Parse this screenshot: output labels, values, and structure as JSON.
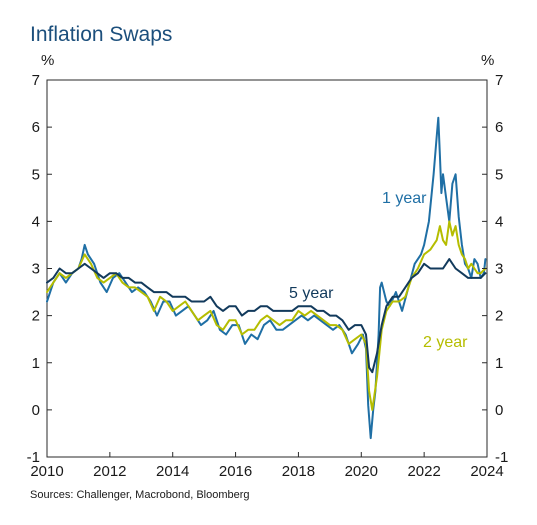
{
  "chart_data": {
    "type": "line",
    "title": "Inflation Swaps",
    "y_unit_left": "%",
    "y_unit_right": "%",
    "source": "Sources: Challenger, Macrobond, Bloomberg",
    "xlim": [
      2010,
      2024
    ],
    "ylim": [
      -1,
      7
    ],
    "x_ticks": [
      2010,
      2012,
      2014,
      2016,
      2018,
      2020,
      2022,
      2024
    ],
    "y_ticks": [
      -1,
      0,
      1,
      2,
      3,
      4,
      5,
      6,
      7
    ],
    "grid": false,
    "legend": "none",
    "colors": {
      "one_year": "#1f6fa5",
      "two_year": "#b5bd00",
      "five_year": "#123a5c"
    },
    "labels": {
      "one_year": "1 year",
      "two_year": "2 year",
      "five_year": "5 year"
    },
    "series": [
      {
        "name": "1 year",
        "key": "one_year",
        "x": [
          2010.0,
          2010.2,
          2010.4,
          2010.6,
          2010.8,
          2011.0,
          2011.1,
          2011.2,
          2011.3,
          2011.5,
          2011.7,
          2011.9,
          2012.1,
          2012.3,
          2012.5,
          2012.7,
          2012.9,
          2013.1,
          2013.3,
          2013.5,
          2013.7,
          2013.9,
          2014.1,
          2014.3,
          2014.5,
          2014.7,
          2014.9,
          2015.1,
          2015.3,
          2015.5,
          2015.7,
          2015.9,
          2016.1,
          2016.3,
          2016.5,
          2016.7,
          2016.9,
          2017.1,
          2017.3,
          2017.5,
          2017.7,
          2017.9,
          2018.1,
          2018.3,
          2018.5,
          2018.7,
          2018.9,
          2019.1,
          2019.3,
          2019.5,
          2019.7,
          2019.9,
          2020.05,
          2020.15,
          2020.22,
          2020.3,
          2020.38,
          2020.45,
          2020.55,
          2020.6,
          2020.65,
          2020.8,
          2020.9,
          2021.1,
          2021.3,
          2021.5,
          2021.7,
          2021.9,
          2022.0,
          2022.15,
          2022.3,
          2022.4,
          2022.45,
          2022.5,
          2022.55,
          2022.6,
          2022.7,
          2022.8,
          2022.9,
          2023.0,
          2023.1,
          2023.2,
          2023.3,
          2023.4,
          2023.5,
          2023.6,
          2023.7,
          2023.8,
          2023.9,
          2023.95
        ],
        "values": [
          2.3,
          2.7,
          2.9,
          2.7,
          2.9,
          3.0,
          3.2,
          3.5,
          3.3,
          3.1,
          2.7,
          2.5,
          2.8,
          2.9,
          2.7,
          2.5,
          2.6,
          2.5,
          2.3,
          2.0,
          2.3,
          2.3,
          2.0,
          2.1,
          2.2,
          2.0,
          1.8,
          1.9,
          2.1,
          1.7,
          1.6,
          1.8,
          1.8,
          1.4,
          1.6,
          1.5,
          1.8,
          1.9,
          1.7,
          1.7,
          1.8,
          1.9,
          2.0,
          1.9,
          2.0,
          1.9,
          1.8,
          1.7,
          1.8,
          1.6,
          1.2,
          1.4,
          1.6,
          1.3,
          0.1,
          -0.6,
          0.0,
          0.4,
          1.6,
          2.6,
          2.7,
          2.3,
          2.2,
          2.5,
          2.1,
          2.6,
          3.1,
          3.3,
          3.5,
          4.0,
          5.0,
          5.8,
          6.2,
          5.4,
          4.6,
          5.0,
          4.5,
          4.0,
          4.8,
          5.0,
          4.1,
          3.5,
          3.1,
          3.0,
          2.8,
          3.2,
          3.1,
          2.8,
          2.9,
          3.2
        ]
      },
      {
        "name": "2 year",
        "key": "two_year",
        "x": [
          2010.0,
          2010.2,
          2010.4,
          2010.6,
          2010.8,
          2011.0,
          2011.2,
          2011.4,
          2011.6,
          2011.8,
          2012.0,
          2012.2,
          2012.4,
          2012.6,
          2012.8,
          2013.0,
          2013.2,
          2013.4,
          2013.6,
          2013.8,
          2014.0,
          2014.2,
          2014.4,
          2014.6,
          2014.8,
          2015.0,
          2015.2,
          2015.4,
          2015.6,
          2015.8,
          2016.0,
          2016.2,
          2016.4,
          2016.6,
          2016.8,
          2017.0,
          2017.2,
          2017.4,
          2017.6,
          2017.8,
          2018.0,
          2018.2,
          2018.4,
          2018.6,
          2018.8,
          2019.0,
          2019.2,
          2019.4,
          2019.6,
          2019.8,
          2020.0,
          2020.15,
          2020.25,
          2020.35,
          2020.5,
          2020.65,
          2020.8,
          2021.0,
          2021.2,
          2021.4,
          2021.6,
          2021.8,
          2022.0,
          2022.2,
          2022.4,
          2022.5,
          2022.6,
          2022.7,
          2022.8,
          2022.9,
          2023.0,
          2023.1,
          2023.2,
          2023.3,
          2023.4,
          2023.5,
          2023.6,
          2023.7,
          2023.8,
          2023.95
        ],
        "values": [
          2.5,
          2.7,
          2.9,
          2.8,
          2.9,
          3.0,
          3.3,
          3.1,
          2.8,
          2.7,
          2.8,
          2.9,
          2.7,
          2.6,
          2.6,
          2.5,
          2.4,
          2.1,
          2.4,
          2.3,
          2.1,
          2.2,
          2.3,
          2.1,
          1.9,
          2.0,
          2.1,
          1.8,
          1.7,
          1.9,
          1.9,
          1.6,
          1.7,
          1.7,
          1.9,
          2.0,
          1.9,
          1.8,
          1.9,
          1.9,
          2.1,
          2.0,
          2.1,
          2.0,
          1.9,
          1.8,
          1.8,
          1.7,
          1.4,
          1.5,
          1.6,
          1.4,
          0.4,
          0.0,
          0.7,
          1.7,
          2.1,
          2.3,
          2.3,
          2.4,
          2.8,
          3.0,
          3.3,
          3.4,
          3.6,
          3.9,
          3.6,
          3.5,
          4.0,
          3.7,
          3.9,
          3.5,
          3.3,
          3.2,
          3.0,
          3.1,
          3.0,
          2.9,
          2.9,
          3.0
        ]
      },
      {
        "name": "5 year",
        "key": "five_year",
        "x": [
          2010.0,
          2010.2,
          2010.4,
          2010.6,
          2010.8,
          2011.0,
          2011.2,
          2011.4,
          2011.6,
          2011.8,
          2012.0,
          2012.2,
          2012.4,
          2012.6,
          2012.8,
          2013.0,
          2013.2,
          2013.4,
          2013.6,
          2013.8,
          2014.0,
          2014.2,
          2014.4,
          2014.6,
          2014.8,
          2015.0,
          2015.2,
          2015.4,
          2015.6,
          2015.8,
          2016.0,
          2016.2,
          2016.4,
          2016.6,
          2016.8,
          2017.0,
          2017.2,
          2017.4,
          2017.6,
          2017.8,
          2018.0,
          2018.2,
          2018.4,
          2018.6,
          2018.8,
          2019.0,
          2019.2,
          2019.4,
          2019.6,
          2019.8,
          2020.0,
          2020.15,
          2020.25,
          2020.35,
          2020.5,
          2020.65,
          2020.8,
          2021.0,
          2021.2,
          2021.4,
          2021.6,
          2021.8,
          2022.0,
          2022.2,
          2022.4,
          2022.6,
          2022.8,
          2023.0,
          2023.2,
          2023.4,
          2023.6,
          2023.8,
          2023.95
        ],
        "values": [
          2.7,
          2.8,
          3.0,
          2.9,
          2.9,
          3.0,
          3.1,
          3.0,
          2.9,
          2.8,
          2.9,
          2.9,
          2.8,
          2.8,
          2.7,
          2.7,
          2.6,
          2.5,
          2.5,
          2.5,
          2.4,
          2.4,
          2.4,
          2.3,
          2.3,
          2.3,
          2.4,
          2.2,
          2.1,
          2.2,
          2.2,
          2.0,
          2.1,
          2.1,
          2.2,
          2.2,
          2.1,
          2.1,
          2.1,
          2.1,
          2.2,
          2.2,
          2.2,
          2.1,
          2.1,
          2.0,
          2.0,
          1.9,
          1.7,
          1.8,
          1.8,
          1.6,
          0.9,
          0.8,
          1.2,
          1.8,
          2.2,
          2.4,
          2.4,
          2.6,
          2.8,
          2.9,
          3.1,
          3.0,
          3.0,
          3.0,
          3.2,
          3.0,
          2.9,
          2.8,
          2.8,
          2.8,
          2.9
        ]
      }
    ]
  }
}
